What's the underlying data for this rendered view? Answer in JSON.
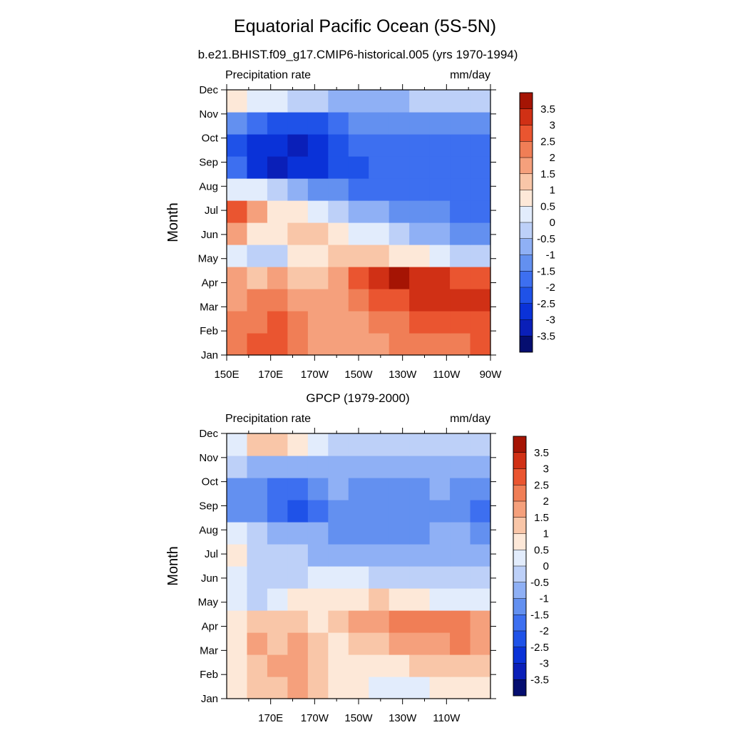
{
  "chart_data": {
    "title": "Equatorial Pacific Ocean (5S-5N)",
    "panels": [
      {
        "type": "heatmap",
        "subtitle": "b.e21.BHIST.f09_g17.CMIP6-historical.005 (yrs 1970-1994)",
        "left_label": "Precipitation rate",
        "right_label": "mm/day",
        "ylabel": "Month",
        "xticks": [
          "150E",
          "170E",
          "170W",
          "150W",
          "130W",
          "110W",
          "90W"
        ],
        "yticks": [
          "Jan",
          "Feb",
          "Mar",
          "Apr",
          "May",
          "Jun",
          "Jul",
          "Aug",
          "Sep",
          "Oct",
          "Nov",
          "Dec"
        ],
        "x_range_deg_east": [
          150,
          270
        ],
        "grid_note": "rows: Jan..Dec; columns: 150E..270E every 10 deg",
        "values": [
          [
            2.1,
            2.9,
            2.8,
            2.1,
            1.9,
            1.7,
            1.6,
            1.9,
            2.1,
            2.2,
            2.3,
            2.4,
            2.5
          ],
          [
            2.0,
            2.4,
            2.9,
            2.2,
            1.7,
            1.6,
            1.7,
            2.1,
            2.3,
            2.5,
            2.6,
            2.6,
            2.7
          ],
          [
            1.8,
            2.0,
            2.4,
            1.9,
            1.5,
            1.7,
            2.1,
            2.6,
            2.9,
            3.1,
            3.3,
            3.3,
            3.1
          ],
          [
            1.6,
            1.4,
            1.5,
            1.3,
            1.2,
            1.9,
            2.7,
            3.2,
            3.5,
            3.4,
            3.1,
            2.8,
            2.6
          ],
          [
            0.4,
            -0.2,
            -0.1,
            0.5,
            0.8,
            1.2,
            1.3,
            1.2,
            0.8,
            0.5,
            0.2,
            -0.1,
            -0.3
          ],
          [
            1.6,
            0.9,
            0.8,
            1.0,
            1.1,
            0.8,
            0.4,
            0.1,
            -0.3,
            -0.6,
            -0.9,
            -1.1,
            -1.3
          ],
          [
            2.6,
            1.5,
            0.9,
            0.6,
            0.3,
            -0.1,
            -0.6,
            -1.0,
            -1.3,
            -1.5,
            -1.5,
            -1.6,
            -1.6
          ],
          [
            0.4,
            0.2,
            -0.3,
            -0.8,
            -1.2,
            -1.5,
            -1.6,
            -1.7,
            -1.8,
            -1.8,
            -1.9,
            -1.8,
            -1.7
          ],
          [
            -1.8,
            -2.7,
            -3.1,
            -2.9,
            -2.6,
            -2.3,
            -2.1,
            -2.0,
            -1.9,
            -1.9,
            -1.9,
            -1.9,
            -1.8
          ],
          [
            -2.1,
            -2.6,
            -2.9,
            -3.2,
            -2.8,
            -2.2,
            -1.9,
            -1.8,
            -1.8,
            -1.7,
            -1.6,
            -1.6,
            -1.6
          ],
          [
            -1.4,
            -1.9,
            -2.3,
            -2.2,
            -2.1,
            -1.7,
            -1.5,
            -1.4,
            -1.3,
            -1.2,
            -1.1,
            -1.1,
            -1.5
          ],
          [
            0.6,
            0.4,
            0.2,
            -0.2,
            -0.4,
            -0.7,
            -0.9,
            -0.8,
            -0.7,
            -0.5,
            -0.4,
            -0.3,
            -0.3
          ]
        ]
      },
      {
        "type": "heatmap",
        "subtitle": "GPCP (1979-2000)",
        "left_label": "Precipitation rate",
        "right_label": "mm/day",
        "ylabel": "Month",
        "xticks": [
          "170E",
          "170W",
          "150W",
          "130W",
          "110W"
        ],
        "yticks": [
          "Jan",
          "Feb",
          "Mar",
          "Apr",
          "May",
          "Jun",
          "Jul",
          "Aug",
          "Sep",
          "Oct",
          "Nov",
          "Dec"
        ],
        "x_range_deg_east": [
          150,
          270
        ],
        "grid_note": "rows: Jan..Dec; columns: 150E..270E every 10 deg",
        "values": [
          [
            0.6,
            1.3,
            1.4,
            1.7,
            1.0,
            0.7,
            0.5,
            0.4,
            0.3,
            0.3,
            0.5,
            0.7,
            0.6
          ],
          [
            0.8,
            1.4,
            1.5,
            1.6,
            1.1,
            0.9,
            0.7,
            0.8,
            0.9,
            1.2,
            1.2,
            1.4,
            1.3
          ],
          [
            0.9,
            1.6,
            1.2,
            1.5,
            1.0,
            0.9,
            1.1,
            1.4,
            1.6,
            1.8,
            1.9,
            2.0,
            1.8
          ],
          [
            0.8,
            1.1,
            1.2,
            1.1,
            0.8,
            1.1,
            1.5,
            1.8,
            2.0,
            2.2,
            2.1,
            2.1,
            1.6
          ],
          [
            0.3,
            -0.2,
            0.1,
            0.5,
            0.7,
            0.8,
            0.9,
            1.0,
            0.8,
            0.6,
            0.4,
            0.2,
            0.1
          ],
          [
            0.2,
            -0.4,
            -0.3,
            -0.1,
            0.1,
            0.2,
            0.1,
            -0.1,
            -0.2,
            -0.3,
            -0.3,
            -0.2,
            -0.2
          ],
          [
            0.5,
            -0.2,
            -0.5,
            -0.5,
            -0.6,
            -0.7,
            -0.8,
            -0.8,
            -0.8,
            -0.7,
            -0.8,
            -0.7,
            -0.6
          ],
          [
            0.3,
            -0.4,
            -0.9,
            -1.0,
            -1.0,
            -1.1,
            -1.1,
            -1.2,
            -1.2,
            -1.1,
            -0.9,
            -1.0,
            -1.1
          ],
          [
            -1.3,
            -1.1,
            -1.6,
            -2.1,
            -1.6,
            -1.2,
            -1.3,
            -1.4,
            -1.5,
            -1.3,
            -1.1,
            -1.5,
            -1.6
          ],
          [
            -1.1,
            -1.2,
            -1.8,
            -1.6,
            -1.2,
            -0.9,
            -1.1,
            -1.3,
            -1.3,
            -1.2,
            -1.0,
            -1.3,
            -1.4
          ],
          [
            -0.5,
            -0.8,
            -1.0,
            -1.0,
            -0.9,
            -0.8,
            -0.7,
            -0.7,
            -0.6,
            -0.6,
            -0.6,
            -0.6,
            -0.7
          ],
          [
            0.3,
            1.2,
            1.4,
            0.8,
            0.1,
            -0.2,
            -0.3,
            -0.3,
            -0.4,
            -0.4,
            -0.5,
            -0.5,
            -0.5
          ]
        ]
      }
    ],
    "colorbar": {
      "levels": [
        -3.5,
        -3,
        -2.5,
        -2,
        -1.5,
        -1,
        -0.5,
        0,
        0.5,
        1,
        1.5,
        2,
        2.5,
        3,
        3.5
      ],
      "level_labels": [
        "3.5",
        "3",
        "2.5",
        "2",
        "1.5",
        "1",
        "0.5",
        "0",
        "-0.5",
        "-1",
        "-1.5",
        "-2",
        "-2.5",
        "-3",
        "-3.5"
      ],
      "colors": [
        "#050e70",
        "#0a1fb8",
        "#0a32d8",
        "#1f52e8",
        "#3d6ff0",
        "#6390f0",
        "#8fb0f5",
        "#bdd0f8",
        "#e2ecfc",
        "#fde8d8",
        "#f9c6a8",
        "#f5a07c",
        "#f07e56",
        "#ea5530",
        "#d03015",
        "#a51404"
      ]
    }
  }
}
